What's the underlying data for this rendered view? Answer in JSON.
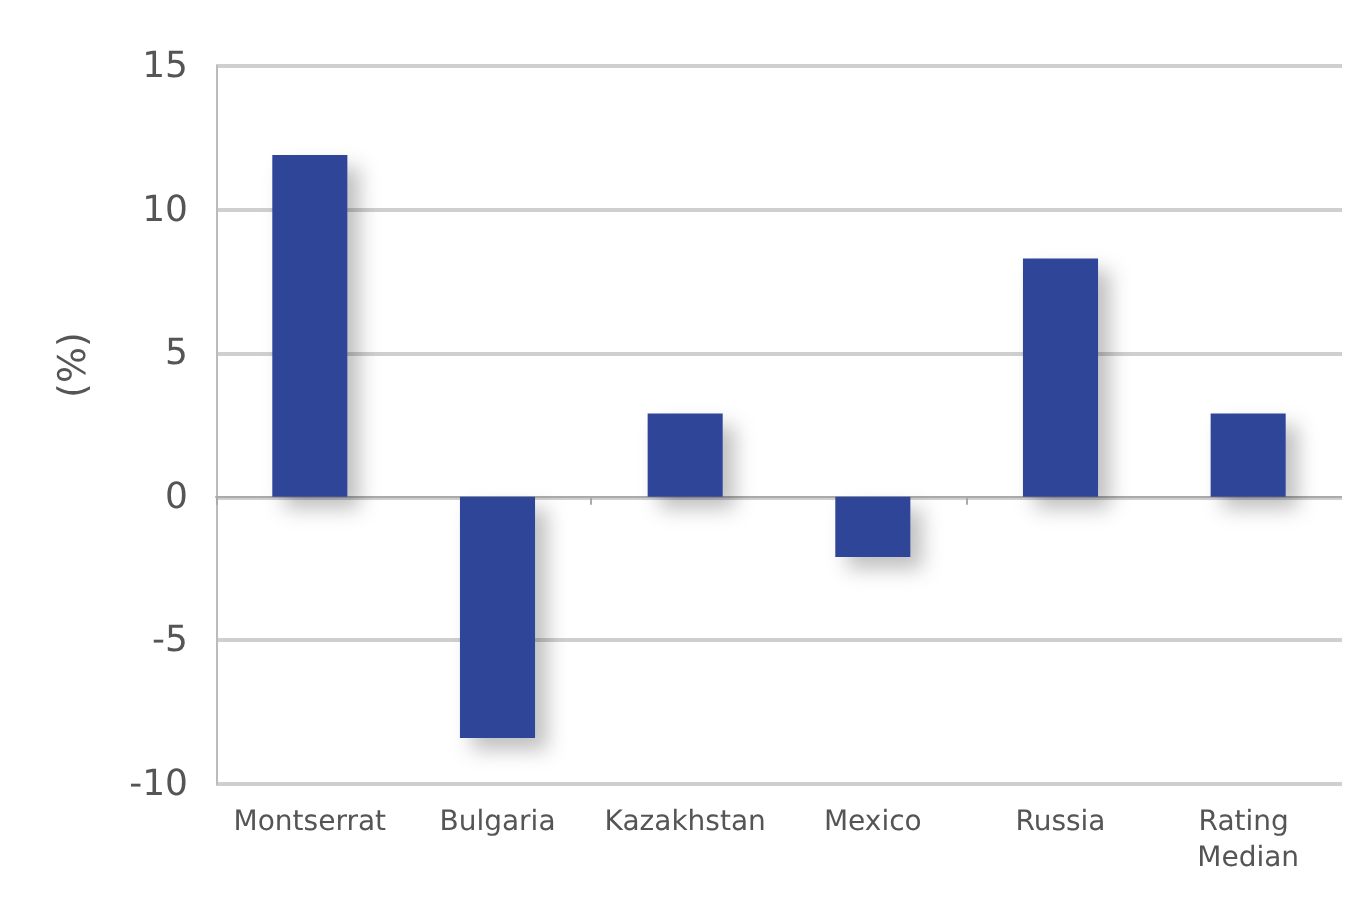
{
  "chart_data": {
    "type": "bar",
    "categories": [
      "Montserrat",
      "Bulgaria",
      "Kazakhstan",
      "Mexico",
      "Russia",
      "Rating Median"
    ],
    "values": [
      11.9,
      -8.4,
      2.9,
      -2.1,
      8.3,
      2.9
    ],
    "color": "#2f4598",
    "ylabel": "(%)",
    "ylim": [
      -10,
      15
    ],
    "yticks": [
      -10,
      -5,
      0,
      5,
      10,
      15
    ],
    "grid": "y"
  }
}
